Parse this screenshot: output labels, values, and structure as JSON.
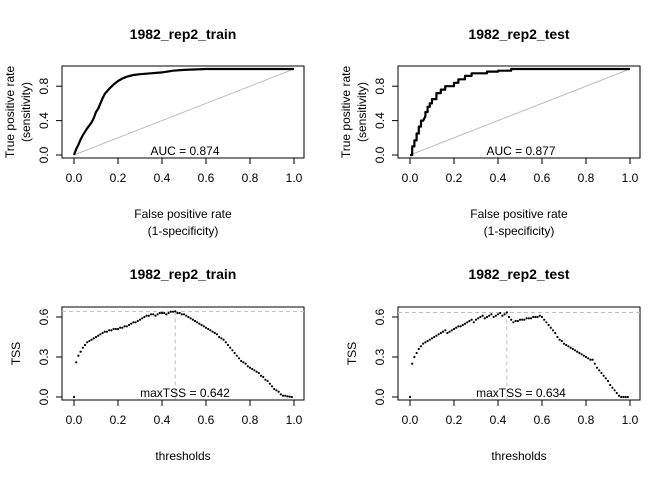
{
  "chart_data": [
    {
      "type": "line",
      "title": "1982_rep2_train",
      "xlabel": [
        "False positive rate",
        "(1-specificity)"
      ],
      "ylabel": [
        "True positive rate",
        "(sensitivity)"
      ],
      "xlim": [
        0,
        1
      ],
      "ylim": [
        0,
        1
      ],
      "xticks": [
        "0.0",
        "0.2",
        "0.4",
        "0.6",
        "0.8",
        "1.0"
      ],
      "yticks": [
        "0.0",
        "0.4",
        "0.8"
      ],
      "grid": false,
      "annotation": "AUC = 0.874",
      "reference_line": {
        "from": [
          0,
          0
        ],
        "to": [
          1,
          1
        ]
      },
      "series": [
        {
          "x": [
            0.0,
            0.01,
            0.02,
            0.03,
            0.04,
            0.05,
            0.06,
            0.08,
            0.09,
            0.1,
            0.11,
            0.12,
            0.13,
            0.14,
            0.16,
            0.18,
            0.2,
            0.22,
            0.24,
            0.27,
            0.3,
            0.35,
            0.4,
            0.45,
            0.5,
            0.6,
            0.8,
            1.0
          ],
          "y": [
            0.0,
            0.07,
            0.12,
            0.18,
            0.23,
            0.27,
            0.31,
            0.38,
            0.43,
            0.5,
            0.54,
            0.6,
            0.66,
            0.71,
            0.77,
            0.82,
            0.86,
            0.89,
            0.91,
            0.93,
            0.94,
            0.95,
            0.96,
            0.98,
            0.99,
            1.0,
            1.0,
            1.0
          ]
        }
      ]
    },
    {
      "type": "line",
      "title": "1982_rep2_test",
      "xlabel": [
        "False positive rate",
        "(1-specificity)"
      ],
      "ylabel": [
        "True positive rate",
        "(sensitivity)"
      ],
      "xlim": [
        0,
        1
      ],
      "ylim": [
        0,
        1
      ],
      "xticks": [
        "0.0",
        "0.2",
        "0.4",
        "0.6",
        "0.8",
        "1.0"
      ],
      "yticks": [
        "0.0",
        "0.4",
        "0.8"
      ],
      "grid": false,
      "annotation": "AUC = 0.877",
      "reference_line": {
        "from": [
          0,
          0
        ],
        "to": [
          1,
          1
        ]
      },
      "series": [
        {
          "x": [
            0.0,
            0.01,
            0.01,
            0.02,
            0.02,
            0.03,
            0.03,
            0.04,
            0.04,
            0.05,
            0.05,
            0.06,
            0.07,
            0.07,
            0.08,
            0.08,
            0.09,
            0.09,
            0.1,
            0.1,
            0.12,
            0.12,
            0.14,
            0.14,
            0.16,
            0.16,
            0.2,
            0.2,
            0.22,
            0.22,
            0.25,
            0.25,
            0.28,
            0.28,
            0.35,
            0.35,
            0.4,
            0.4,
            0.46,
            0.46,
            1.0
          ],
          "y": [
            0.0,
            0.0,
            0.1,
            0.1,
            0.17,
            0.17,
            0.25,
            0.25,
            0.33,
            0.33,
            0.4,
            0.4,
            0.45,
            0.5,
            0.5,
            0.56,
            0.56,
            0.6,
            0.6,
            0.65,
            0.65,
            0.72,
            0.72,
            0.76,
            0.76,
            0.8,
            0.8,
            0.84,
            0.84,
            0.88,
            0.88,
            0.92,
            0.92,
            0.95,
            0.95,
            0.97,
            0.97,
            0.98,
            0.98,
            1.0,
            1.0
          ]
        }
      ]
    },
    {
      "type": "scatter",
      "title": "1982_rep2_train",
      "xlabel": [
        "thresholds"
      ],
      "ylabel": [
        "TSS"
      ],
      "xlim": [
        0,
        1
      ],
      "ylim": [
        0,
        0.66
      ],
      "xticks": [
        "0.0",
        "0.2",
        "0.4",
        "0.6",
        "0.8",
        "1.0"
      ],
      "yticks": [
        "0.0",
        "0.3",
        "0.6"
      ],
      "grid": false,
      "annotation": "maxTSS = 0.642",
      "max_value": 0.642,
      "max_threshold": 0.46,
      "series": [
        {
          "x": [
            0.0,
            0.01,
            0.02,
            0.03,
            0.04,
            0.05,
            0.06,
            0.07,
            0.08,
            0.09,
            0.1,
            0.11,
            0.12,
            0.13,
            0.14,
            0.15,
            0.16,
            0.17,
            0.18,
            0.19,
            0.2,
            0.21,
            0.22,
            0.23,
            0.24,
            0.25,
            0.26,
            0.27,
            0.28,
            0.29,
            0.3,
            0.31,
            0.32,
            0.33,
            0.34,
            0.35,
            0.36,
            0.37,
            0.38,
            0.39,
            0.4,
            0.41,
            0.42,
            0.43,
            0.44,
            0.45,
            0.46,
            0.47,
            0.48,
            0.49,
            0.5,
            0.51,
            0.52,
            0.53,
            0.54,
            0.55,
            0.56,
            0.57,
            0.58,
            0.59,
            0.6,
            0.61,
            0.62,
            0.63,
            0.64,
            0.65,
            0.66,
            0.67,
            0.68,
            0.69,
            0.7,
            0.71,
            0.72,
            0.73,
            0.74,
            0.75,
            0.76,
            0.77,
            0.78,
            0.79,
            0.8,
            0.81,
            0.82,
            0.83,
            0.84,
            0.85,
            0.86,
            0.87,
            0.88,
            0.89,
            0.9,
            0.91,
            0.92,
            0.93,
            0.94,
            0.95,
            0.96,
            0.97,
            0.98,
            0.99
          ],
          "y": [
            0.0,
            0.26,
            0.31,
            0.34,
            0.37,
            0.39,
            0.41,
            0.42,
            0.43,
            0.44,
            0.45,
            0.46,
            0.47,
            0.48,
            0.49,
            0.49,
            0.5,
            0.5,
            0.51,
            0.51,
            0.51,
            0.52,
            0.52,
            0.53,
            0.53,
            0.54,
            0.55,
            0.56,
            0.56,
            0.57,
            0.58,
            0.59,
            0.6,
            0.61,
            0.61,
            0.62,
            0.62,
            0.61,
            0.62,
            0.63,
            0.63,
            0.63,
            0.62,
            0.63,
            0.64,
            0.64,
            0.642,
            0.63,
            0.63,
            0.62,
            0.62,
            0.61,
            0.6,
            0.59,
            0.58,
            0.57,
            0.56,
            0.55,
            0.54,
            0.53,
            0.52,
            0.51,
            0.5,
            0.49,
            0.48,
            0.47,
            0.45,
            0.44,
            0.43,
            0.41,
            0.39,
            0.37,
            0.35,
            0.33,
            0.31,
            0.29,
            0.27,
            0.26,
            0.25,
            0.23,
            0.22,
            0.21,
            0.2,
            0.19,
            0.18,
            0.16,
            0.15,
            0.13,
            0.12,
            0.1,
            0.08,
            0.06,
            0.05,
            0.04,
            0.02,
            0.01,
            0.01,
            0.005,
            0.002,
            0.0
          ]
        }
      ]
    },
    {
      "type": "scatter",
      "title": "1982_rep2_test",
      "xlabel": [
        "thresholds"
      ],
      "ylabel": [
        "TSS"
      ],
      "xlim": [
        0,
        1
      ],
      "ylim": [
        0,
        0.66
      ],
      "xticks": [
        "0.0",
        "0.2",
        "0.4",
        "0.6",
        "0.8",
        "1.0"
      ],
      "yticks": [
        "0.0",
        "0.3",
        "0.6"
      ],
      "grid": false,
      "annotation": "maxTSS = 0.634",
      "max_value": 0.634,
      "max_threshold": 0.44,
      "series": [
        {
          "x": [
            0.0,
            0.01,
            0.02,
            0.03,
            0.04,
            0.05,
            0.06,
            0.07,
            0.08,
            0.09,
            0.1,
            0.11,
            0.12,
            0.13,
            0.14,
            0.15,
            0.16,
            0.17,
            0.18,
            0.19,
            0.2,
            0.21,
            0.22,
            0.23,
            0.24,
            0.25,
            0.26,
            0.27,
            0.28,
            0.29,
            0.3,
            0.31,
            0.32,
            0.33,
            0.34,
            0.35,
            0.36,
            0.37,
            0.38,
            0.39,
            0.4,
            0.41,
            0.42,
            0.43,
            0.44,
            0.45,
            0.46,
            0.47,
            0.48,
            0.49,
            0.5,
            0.51,
            0.52,
            0.53,
            0.54,
            0.55,
            0.56,
            0.57,
            0.58,
            0.59,
            0.6,
            0.61,
            0.62,
            0.63,
            0.64,
            0.65,
            0.66,
            0.67,
            0.68,
            0.69,
            0.7,
            0.71,
            0.72,
            0.73,
            0.74,
            0.75,
            0.76,
            0.77,
            0.78,
            0.79,
            0.8,
            0.81,
            0.82,
            0.83,
            0.84,
            0.85,
            0.86,
            0.87,
            0.88,
            0.89,
            0.9,
            0.91,
            0.92,
            0.93,
            0.94,
            0.95,
            0.96,
            0.97,
            0.98,
            0.99
          ],
          "y": [
            0.0,
            0.25,
            0.3,
            0.33,
            0.36,
            0.38,
            0.4,
            0.41,
            0.42,
            0.43,
            0.44,
            0.45,
            0.46,
            0.47,
            0.48,
            0.49,
            0.5,
            0.48,
            0.49,
            0.5,
            0.51,
            0.52,
            0.53,
            0.53,
            0.54,
            0.55,
            0.56,
            0.57,
            0.58,
            0.56,
            0.58,
            0.59,
            0.6,
            0.61,
            0.59,
            0.6,
            0.61,
            0.62,
            0.6,
            0.61,
            0.62,
            0.63,
            0.61,
            0.62,
            0.634,
            0.6,
            0.58,
            0.56,
            0.57,
            0.57,
            0.58,
            0.58,
            0.58,
            0.59,
            0.59,
            0.59,
            0.6,
            0.6,
            0.6,
            0.61,
            0.6,
            0.58,
            0.56,
            0.54,
            0.52,
            0.5,
            0.48,
            0.45,
            0.43,
            0.42,
            0.4,
            0.39,
            0.38,
            0.37,
            0.36,
            0.35,
            0.34,
            0.33,
            0.32,
            0.31,
            0.3,
            0.29,
            0.28,
            0.28,
            0.25,
            0.22,
            0.2,
            0.18,
            0.16,
            0.14,
            0.12,
            0.09,
            0.07,
            0.05,
            0.03,
            0.01,
            0.0,
            0.0,
            0.0,
            0.0
          ]
        }
      ]
    }
  ]
}
